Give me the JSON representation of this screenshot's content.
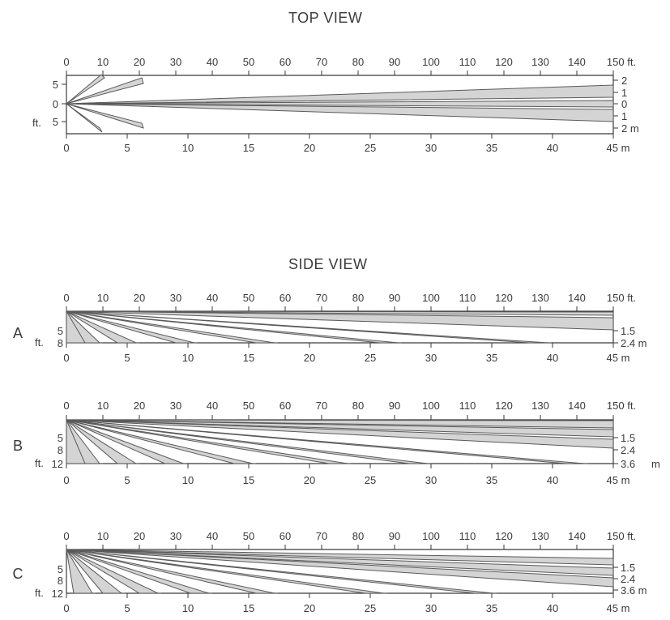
{
  "top_view": {
    "title": "TOP VIEW",
    "ft_ticks": [
      "0",
      "10",
      "20",
      "30",
      "40",
      "50",
      "60",
      "70",
      "80",
      "90",
      "100",
      "110",
      "120",
      "130",
      "140",
      "150 ft."
    ],
    "m_ticks": [
      "0",
      "5",
      "10",
      "15",
      "20",
      "25",
      "30",
      "35",
      "40",
      "45 m"
    ],
    "left_labels": [
      "5",
      "0",
      "5"
    ],
    "left_unit": "ft.",
    "right_labels": [
      "2",
      "1",
      "0",
      "1",
      "2 m"
    ]
  },
  "side_view": {
    "title": "SIDE VIEW",
    "ft_ticks": [
      "0",
      "10",
      "20",
      "30",
      "40",
      "50",
      "60",
      "70",
      "80",
      "90",
      "100",
      "110",
      "120",
      "130",
      "140",
      "150 ft."
    ],
    "m_ticks": [
      "0",
      "5",
      "10",
      "15",
      "20",
      "25",
      "30",
      "35",
      "40",
      "45 m"
    ],
    "panels": [
      {
        "letter": "A",
        "left_labels": [
          "5",
          "8"
        ],
        "left_unit": "ft.",
        "right_labels": [
          "1.5",
          "2.4 m"
        ]
      },
      {
        "letter": "B",
        "left_labels": [
          "5",
          "8",
          "12"
        ],
        "left_unit": "ft.",
        "right_labels": [
          "1.5",
          "2.4",
          "3.6"
        ],
        "right_unit": "m"
      },
      {
        "letter": "C",
        "left_labels": [
          "5",
          "8",
          "12"
        ],
        "left_unit": "ft.",
        "right_labels": [
          "1.5",
          "2.4",
          "3.6 m"
        ]
      }
    ]
  },
  "colors": {
    "ink": "#3a3a3a",
    "zone_fill": "#d4d4d4",
    "zone_edge": "#5a5a5a"
  }
}
